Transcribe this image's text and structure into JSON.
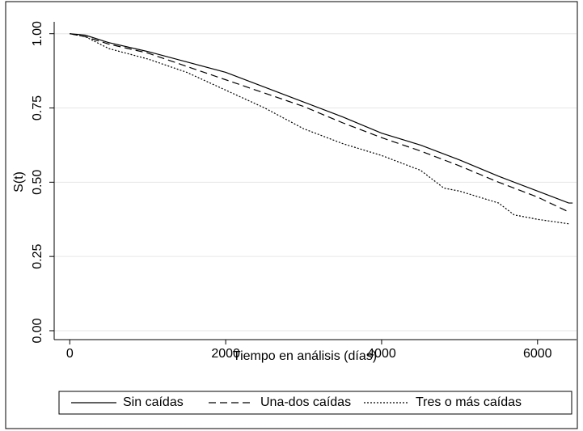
{
  "chart_data": {
    "type": "line",
    "x_label": "Tiempo en análisis (días)",
    "y_label": "S(t)",
    "xlim": [
      -200,
      6500
    ],
    "ylim": [
      -0.03,
      1.04
    ],
    "xticks": [
      0,
      2000,
      4000,
      6000
    ],
    "yticks": [
      {
        "value": 0,
        "label": "0.00"
      },
      {
        "value": 0.25,
        "label": "0.25"
      },
      {
        "value": 0.5,
        "label": "0.50"
      },
      {
        "value": 0.75,
        "label": "0.75"
      },
      {
        "value": 1,
        "label": "1.00"
      }
    ],
    "grid": true,
    "legend": "bottom",
    "series": [
      {
        "name": "Sin caídas",
        "color": "#000000",
        "dash": "solid",
        "x": [
          0,
          200,
          500,
          1000,
          1500,
          2000,
          2500,
          3000,
          3500,
          4000,
          4500,
          5000,
          5500,
          6000,
          6400,
          6450
        ],
        "values": [
          1.0,
          0.995,
          0.97,
          0.94,
          0.905,
          0.87,
          0.82,
          0.77,
          0.72,
          0.665,
          0.625,
          0.575,
          0.52,
          0.47,
          0.43,
          0.43
        ]
      },
      {
        "name": "Una-dos caídas",
        "color": "#000000",
        "dash": "dashed",
        "x": [
          0,
          200,
          500,
          1000,
          1500,
          2000,
          2500,
          3000,
          3500,
          4000,
          4500,
          5000,
          5500,
          6000,
          6400
        ],
        "values": [
          1.0,
          0.99,
          0.965,
          0.935,
          0.89,
          0.845,
          0.8,
          0.755,
          0.7,
          0.65,
          0.605,
          0.555,
          0.5,
          0.45,
          0.4
        ]
      },
      {
        "name": "Tres o más caídas",
        "color": "#000000",
        "dash": "dotted",
        "x": [
          0,
          200,
          500,
          1000,
          1500,
          2000,
          2500,
          3000,
          3500,
          4000,
          4500,
          4800,
          5000,
          5500,
          5700,
          6000,
          6400
        ],
        "values": [
          1.0,
          0.99,
          0.95,
          0.915,
          0.87,
          0.81,
          0.75,
          0.68,
          0.63,
          0.59,
          0.54,
          0.48,
          0.47,
          0.43,
          0.39,
          0.375,
          0.36
        ]
      }
    ]
  }
}
